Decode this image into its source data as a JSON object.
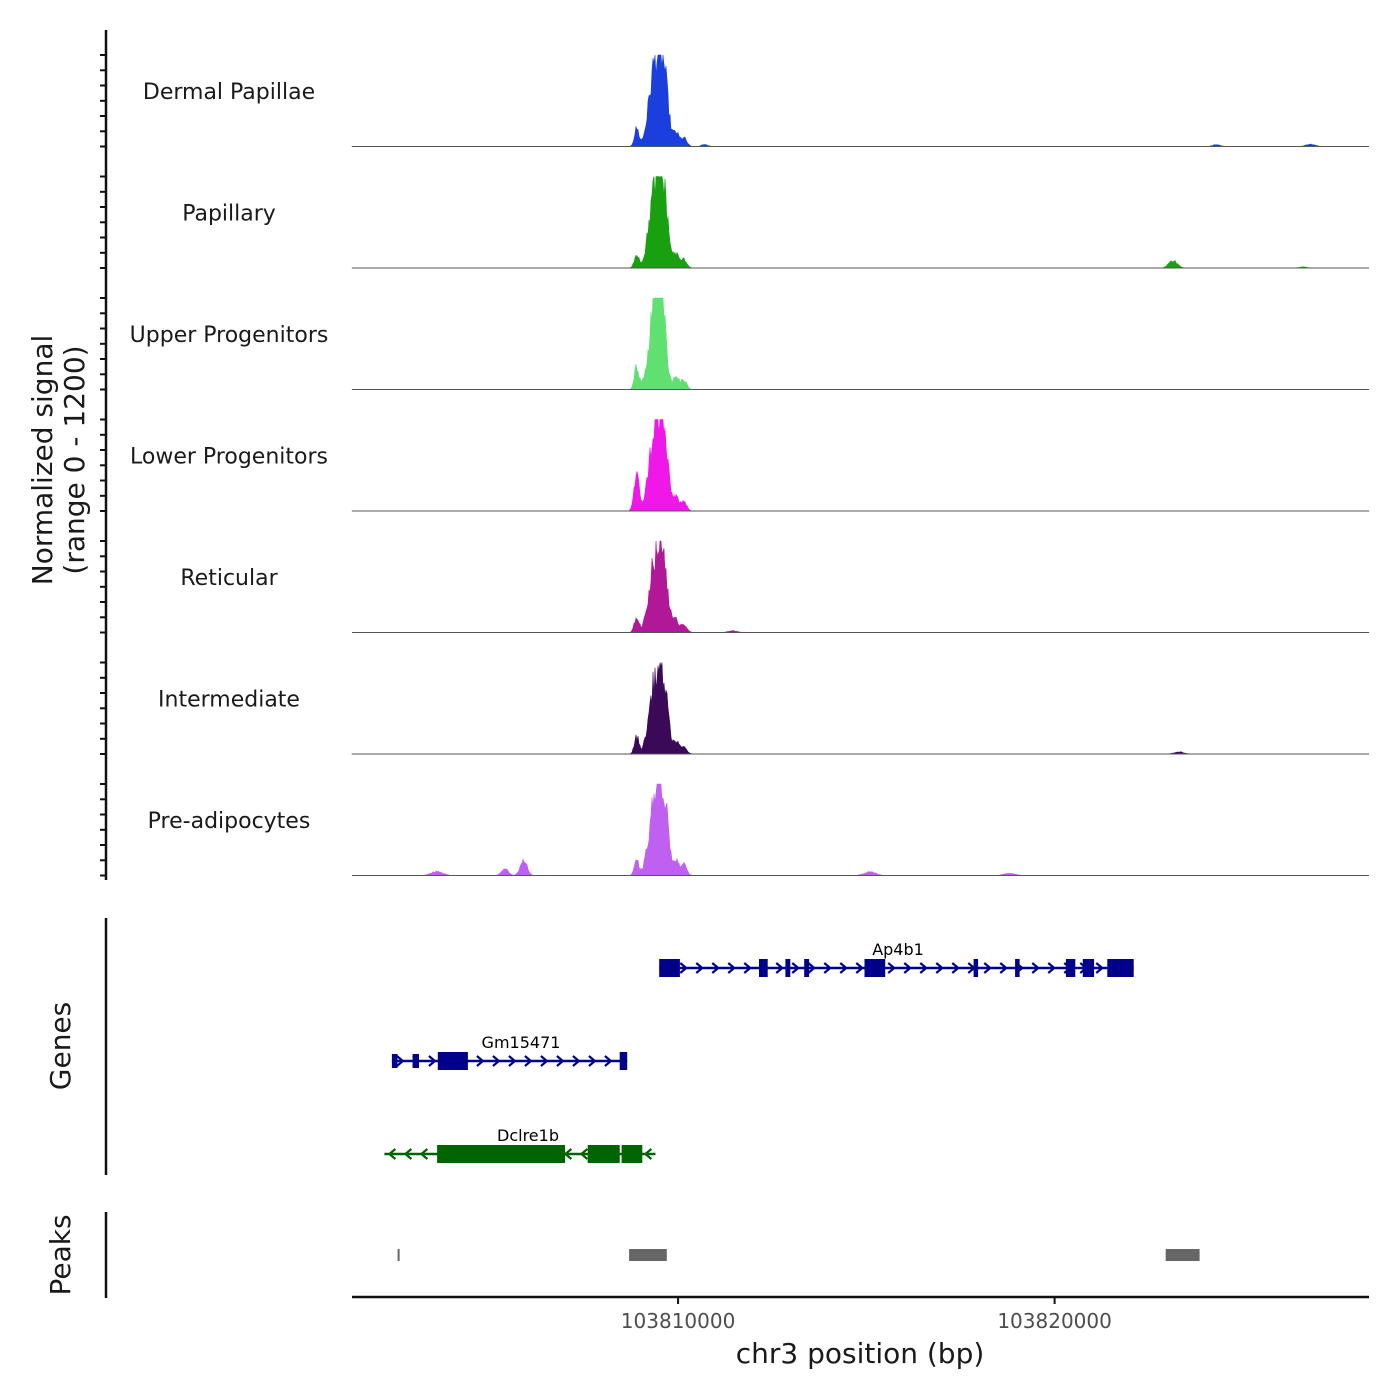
{
  "chart_data": {
    "type": "area",
    "title": "",
    "ylabel_line1": "Normalized signal",
    "ylabel_line2": "(range 0 - 1200)",
    "xlabel": "chr3 position (bp)",
    "chromosome": "chr3",
    "xlim": [
      103801340,
      103828350
    ],
    "ylim": [
      0,
      1200
    ],
    "xticks": [
      103810000,
      103820000
    ],
    "xtick_labels": [
      "103810000",
      "103820000"
    ],
    "series": [
      {
        "name": "Dermal Papillae",
        "color": "#1a3fdc",
        "peaks": [
          [
            103808900,
            250,
            60
          ],
          [
            103809380,
            1100,
            150
          ],
          [
            103809620,
            900,
            120
          ],
          [
            103809950,
            180,
            70
          ],
          [
            103810150,
            120,
            80
          ],
          [
            103810700,
            30,
            80
          ],
          [
            103824300,
            25,
            100
          ],
          [
            103826800,
            30,
            120
          ]
        ]
      },
      {
        "name": "Papillary",
        "color": "#18a010",
        "peaks": [
          [
            103808900,
            200,
            60
          ],
          [
            103809380,
            1080,
            150
          ],
          [
            103809620,
            900,
            120
          ],
          [
            103809950,
            180,
            70
          ],
          [
            103810150,
            120,
            80
          ],
          [
            103823150,
            110,
            110
          ],
          [
            103826600,
            15,
            100
          ]
        ]
      },
      {
        "name": "Upper Progenitors",
        "color": "#5fe070",
        "peaks": [
          [
            103808900,
            320,
            60
          ],
          [
            103809380,
            1100,
            150
          ],
          [
            103809560,
            950,
            120
          ],
          [
            103809950,
            180,
            70
          ],
          [
            103810150,
            130,
            80
          ]
        ]
      },
      {
        "name": "Lower Progenitors",
        "color": "#f018e8",
        "peaks": [
          [
            103808900,
            480,
            70
          ],
          [
            103809380,
            1100,
            150
          ],
          [
            103809620,
            900,
            120
          ],
          [
            103809950,
            190,
            70
          ],
          [
            103810150,
            120,
            80
          ]
        ]
      },
      {
        "name": "Reticular",
        "color": "#b01898",
        "peaks": [
          [
            103808900,
            220,
            60
          ],
          [
            103809380,
            1000,
            150
          ],
          [
            103809620,
            850,
            120
          ],
          [
            103809950,
            160,
            70
          ],
          [
            103810150,
            120,
            80
          ],
          [
            103811450,
            25,
            120
          ]
        ]
      },
      {
        "name": "Intermediate",
        "color": "#3a0a58",
        "peaks": [
          [
            103808900,
            240,
            60
          ],
          [
            103809380,
            960,
            150
          ],
          [
            103809620,
            820,
            120
          ],
          [
            103809950,
            160,
            70
          ],
          [
            103810150,
            100,
            80
          ],
          [
            103823300,
            30,
            120
          ]
        ]
      },
      {
        "name": "Pre-adipocytes",
        "color": "#c060f0",
        "peaks": [
          [
            103803600,
            60,
            150
          ],
          [
            103805400,
            90,
            90
          ],
          [
            103805900,
            210,
            90
          ],
          [
            103808900,
            200,
            60
          ],
          [
            103809380,
            1020,
            150
          ],
          [
            103809620,
            1000,
            120
          ],
          [
            103809950,
            200,
            70
          ],
          [
            103810150,
            150,
            80
          ],
          [
            103815100,
            50,
            150
          ],
          [
            103818800,
            30,
            150
          ]
        ]
      }
    ],
    "genes_track_label": "Genes",
    "genes": [
      {
        "name": "Ap4b1",
        "strand": "+",
        "color": "#00008b",
        "start": 103809500,
        "end": 103822100,
        "exons": [
          [
            103809500,
            103810050,
            18
          ],
          [
            103812150,
            103812380,
            18
          ],
          [
            103812850,
            103812980,
            18
          ],
          [
            103813350,
            103813480,
            18
          ],
          [
            103814950,
            103815500,
            18
          ],
          [
            103817850,
            103817970,
            18
          ],
          [
            103818950,
            103819070,
            18
          ],
          [
            103820300,
            103820550,
            18
          ],
          [
            103820750,
            103821050,
            18
          ],
          [
            103821400,
            103822100,
            18
          ]
        ]
      },
      {
        "name": "Gm15471",
        "strand": "+",
        "color": "#00008b",
        "start": 103802400,
        "end": 103808650,
        "exons": [
          [
            103802400,
            103802550,
            14
          ],
          [
            103802950,
            103803120,
            14
          ],
          [
            103803620,
            103804420,
            18
          ],
          [
            103808450,
            103808650,
            18
          ]
        ]
      },
      {
        "name": "Dclre1b",
        "strand": "-",
        "color": "#006400",
        "start": 103802200,
        "end": 103809400,
        "exons": [
          [
            103803600,
            103807000,
            18
          ],
          [
            103807600,
            103808450,
            18
          ],
          [
            103808500,
            103809050,
            18
          ]
        ]
      }
    ],
    "peaks_track_label": "Peaks",
    "peak_regions": [
      [
        103802550,
        103802600
      ],
      [
        103808700,
        103809700
      ],
      [
        103822950,
        103823850
      ]
    ]
  }
}
